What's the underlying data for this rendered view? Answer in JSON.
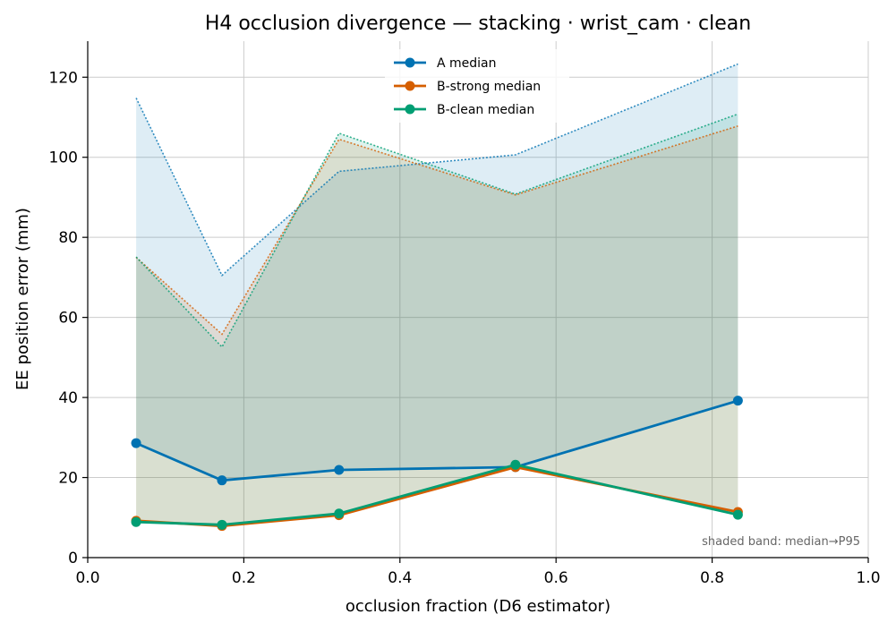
{
  "chart_data": {
    "type": "line",
    "title": "H4 occlusion divergence — stacking · wrist_cam · clean",
    "xlabel": "occlusion fraction (D6 estimator)",
    "ylabel": "EE position error (mm)",
    "xlim": [
      0.0,
      1.0
    ],
    "ylim": [
      0,
      129
    ],
    "x_ticks": [
      0.0,
      0.2,
      0.4,
      0.6,
      0.8,
      1.0
    ],
    "x_tick_labels": [
      "0.0",
      "0.2",
      "0.4",
      "0.6",
      "0.8",
      "1.0"
    ],
    "y_ticks": [
      0,
      20,
      40,
      60,
      80,
      100,
      120
    ],
    "y_tick_labels": [
      "0",
      "20",
      "40",
      "60",
      "80",
      "100",
      "120"
    ],
    "grid": true,
    "legend_position": "top-center",
    "annotation": "shaded band: median→P95",
    "x": [
      0.062,
      0.172,
      0.322,
      0.548,
      0.833
    ],
    "series": [
      {
        "name": "A median",
        "color": "#0072b2",
        "median": [
          28.6,
          19.3,
          21.9,
          22.6,
          39.2
        ],
        "p95": [
          114.8,
          70.5,
          96.5,
          100.6,
          123.3
        ]
      },
      {
        "name": "B-strong median",
        "color": "#d55e00",
        "median": [
          9.2,
          7.9,
          10.6,
          22.6,
          11.4
        ],
        "p95": [
          75.0,
          55.8,
          104.5,
          90.6,
          107.8
        ]
      },
      {
        "name": "B-clean median",
        "color": "#009e73",
        "median": [
          8.9,
          8.2,
          11.0,
          23.2,
          10.7
        ],
        "p95": [
          75.1,
          52.6,
          106.0,
          90.8,
          110.8
        ]
      }
    ]
  }
}
